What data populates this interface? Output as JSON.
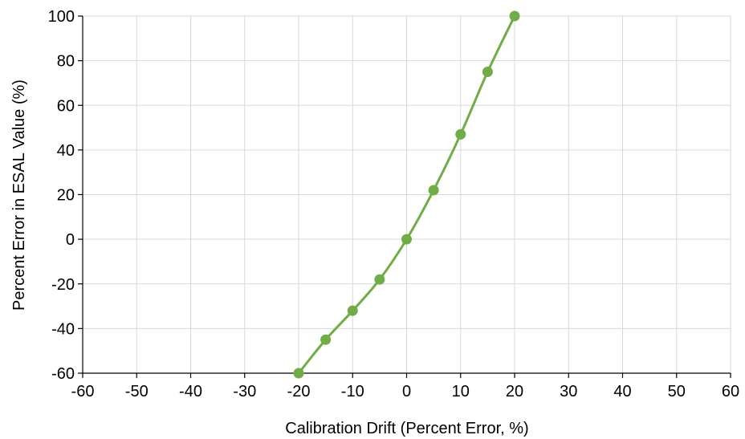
{
  "chart_data": {
    "type": "line",
    "title": "",
    "xlabel": "Calibration Drift (Percent Error, %)",
    "ylabel": "Percent Error in ESAL Value (%)",
    "xlim": [
      -60,
      60
    ],
    "ylim": [
      -60,
      100
    ],
    "xticks": [
      -60,
      -50,
      -40,
      -30,
      -20,
      -10,
      0,
      10,
      20,
      30,
      40,
      50,
      60
    ],
    "yticks": [
      -60,
      -40,
      -20,
      0,
      20,
      40,
      60,
      80,
      100
    ],
    "grid": true,
    "legend": "none",
    "series": [
      {
        "color": "#70ad47",
        "marker": "circle",
        "x": [
          -20,
          -15,
          -10,
          -5,
          0,
          5,
          10,
          15,
          20
        ],
        "y": [
          -60,
          -45,
          -32,
          -18,
          0,
          22,
          47,
          75,
          100
        ]
      }
    ]
  }
}
